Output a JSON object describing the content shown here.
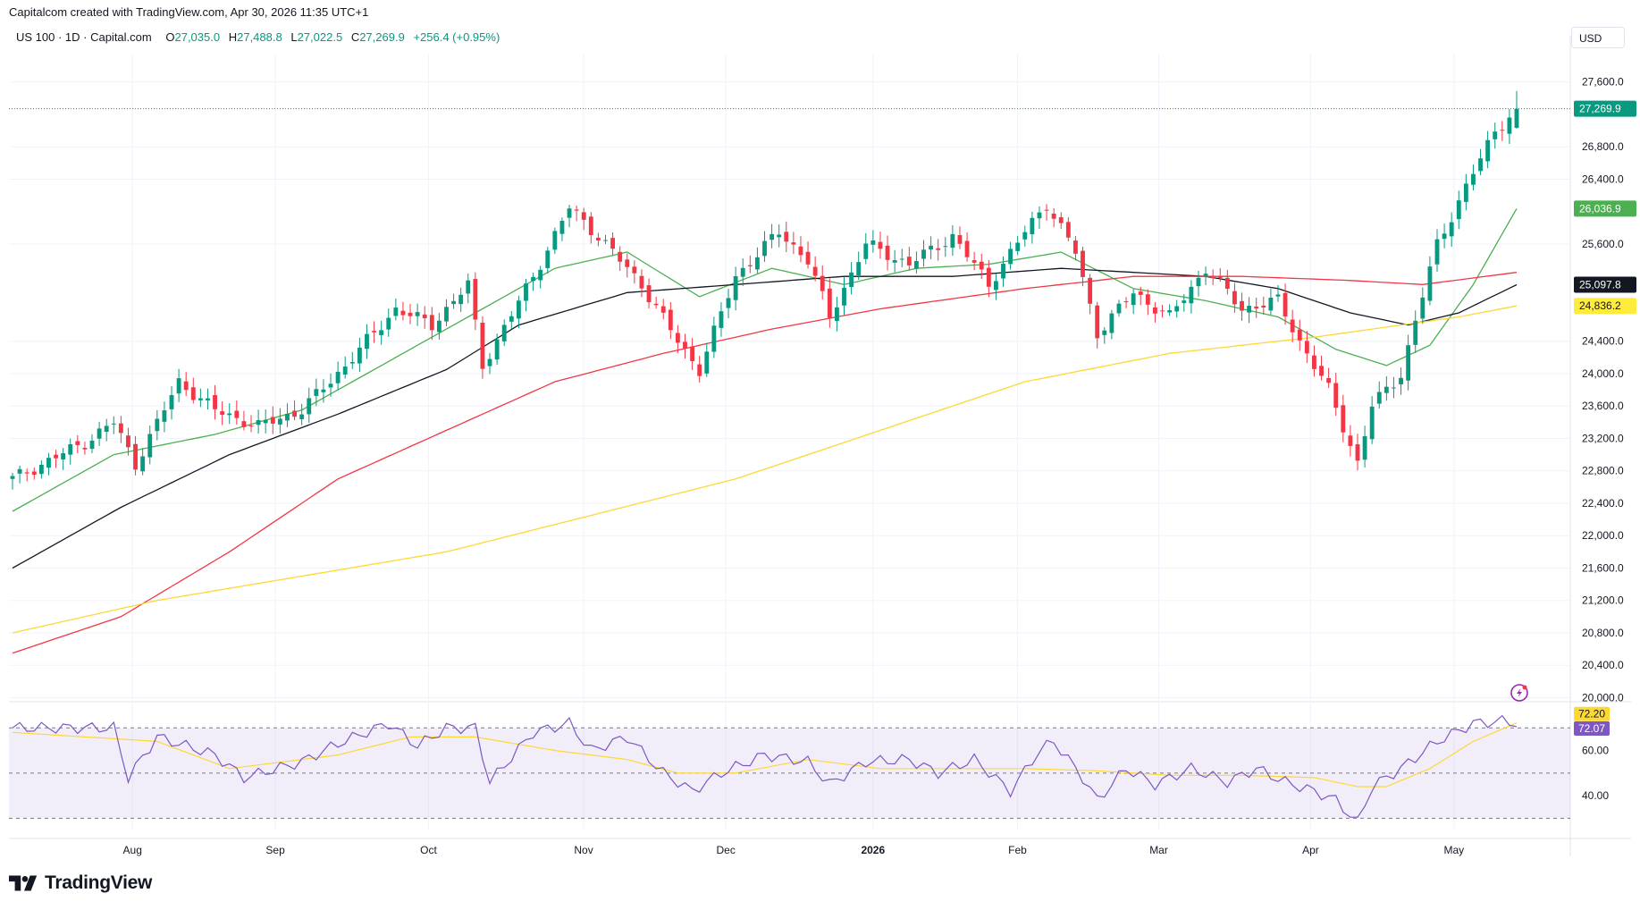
{
  "header": {
    "text": "Capitalcom created with TradingView.com, Apr 30, 2026 11:35 UTC+1"
  },
  "legend": {
    "symbol": "US 100 · 1D · Capital.com",
    "open_label": "O",
    "open": "27,035.0",
    "high_label": "H",
    "high": "27,488.8",
    "low_label": "L",
    "low": "27,022.5",
    "close_label": "C",
    "close": "27,269.9",
    "change": "+256.4 (+0.95%)"
  },
  "currency": "USD",
  "brand": {
    "name": "TradingView",
    "logo_icon": "tradingview-logo-icon"
  },
  "colors": {
    "up": "#089981",
    "down": "#f23645",
    "ma20": "#4caf50",
    "ma50": "#131722",
    "ma100": "#f23645",
    "ma200": "#ffeb3b",
    "rsi": "#7e57c2",
    "rsi_ma": "#fdd835",
    "rsi_band": "#7e57c2"
  },
  "chart_data": [
    {
      "type": "candlestick",
      "title": "US 100 · 1D · Capital.com",
      "x_ticks": [
        "Aug",
        "Sep",
        "Oct",
        "Nov",
        "Dec",
        "2026",
        "Feb",
        "Mar",
        "Apr",
        "May"
      ],
      "y_ticks": [
        "20,000.0",
        "20,400.0",
        "20,800.0",
        "21,200.0",
        "21,600.0",
        "22,000.0",
        "22,400.0",
        "22,800.0",
        "23,200.0",
        "23,600.0",
        "24,000.0",
        "24,400.0",
        "25,600.0",
        "26,400.0",
        "26,800.0",
        "27,600.0"
      ],
      "ylim": [
        19950,
        27950
      ],
      "price_labels": [
        {
          "name": "last-price",
          "text": "27,269.9",
          "value": 27269.9,
          "color": "#089981"
        },
        {
          "name": "ma20",
          "text": "26,036.9",
          "value": 26036.9,
          "color": "#4caf50"
        },
        {
          "name": "ma50",
          "text": "25,097.8",
          "value": 25097.8,
          "color": "#131722"
        },
        {
          "name": "ma200",
          "text": "24,836.2",
          "value": 24836.2,
          "color": "#ffeb3b"
        }
      ],
      "ohlc_anchors": [
        {
          "x": 0,
          "v": 22700
        },
        {
          "x": 10,
          "v": 23150
        },
        {
          "x": 14,
          "v": 23400
        },
        {
          "x": 17,
          "v": 22880
        },
        {
          "x": 23,
          "v": 23900
        },
        {
          "x": 28,
          "v": 23550
        },
        {
          "x": 34,
          "v": 23350
        },
        {
          "x": 40,
          "v": 23550
        },
        {
          "x": 46,
          "v": 24100
        },
        {
          "x": 53,
          "v": 24800
        },
        {
          "x": 58,
          "v": 24600
        },
        {
          "x": 63,
          "v": 25100
        },
        {
          "x": 65,
          "v": 24100
        },
        {
          "x": 72,
          "v": 25200
        },
        {
          "x": 77,
          "v": 26050
        },
        {
          "x": 81,
          "v": 25700
        },
        {
          "x": 87,
          "v": 25100
        },
        {
          "x": 92,
          "v": 24400
        },
        {
          "x": 95,
          "v": 24050
        },
        {
          "x": 100,
          "v": 25200
        },
        {
          "x": 106,
          "v": 25750
        },
        {
          "x": 110,
          "v": 25400
        },
        {
          "x": 113,
          "v": 24700
        },
        {
          "x": 118,
          "v": 25600
        },
        {
          "x": 124,
          "v": 25350
        },
        {
          "x": 130,
          "v": 25700
        },
        {
          "x": 135,
          "v": 25100
        },
        {
          "x": 140,
          "v": 25750
        },
        {
          "x": 143,
          "v": 26100
        },
        {
          "x": 147,
          "v": 25500
        },
        {
          "x": 150,
          "v": 24500
        },
        {
          "x": 155,
          "v": 25000
        },
        {
          "x": 160,
          "v": 24700
        },
        {
          "x": 165,
          "v": 25300
        },
        {
          "x": 170,
          "v": 24800
        },
        {
          "x": 175,
          "v": 24900
        },
        {
          "x": 178,
          "v": 24400
        },
        {
          "x": 182,
          "v": 23800
        },
        {
          "x": 186,
          "v": 22900
        },
        {
          "x": 188,
          "v": 23600
        },
        {
          "x": 192,
          "v": 24000
        },
        {
          "x": 197,
          "v": 25600
        },
        {
          "x": 201,
          "v": 26300
        },
        {
          "x": 205,
          "v": 27000
        },
        {
          "x": 208,
          "v": 27269.9
        }
      ],
      "moving_averages": [
        {
          "name": "MA",
          "color": "#4caf50",
          "points": [
            [
              0,
              22300
            ],
            [
              14,
              23000
            ],
            [
              28,
              23250
            ],
            [
              40,
              23550
            ],
            [
              53,
              24200
            ],
            [
              63,
              24700
            ],
            [
              75,
              25300
            ],
            [
              85,
              25500
            ],
            [
              95,
              24950
            ],
            [
              105,
              25300
            ],
            [
              115,
              25100
            ],
            [
              125,
              25300
            ],
            [
              135,
              25350
            ],
            [
              145,
              25500
            ],
            [
              155,
              25050
            ],
            [
              165,
              24900
            ],
            [
              175,
              24700
            ],
            [
              183,
              24300
            ],
            [
              190,
              24100
            ],
            [
              196,
              24350
            ],
            [
              202,
              25100
            ],
            [
              208,
              26036.9
            ]
          ]
        },
        {
          "name": "MA",
          "color": "#131722",
          "points": [
            [
              0,
              21600
            ],
            [
              15,
              22350
            ],
            [
              30,
              23000
            ],
            [
              45,
              23500
            ],
            [
              60,
              24050
            ],
            [
              70,
              24600
            ],
            [
              85,
              25000
            ],
            [
              100,
              25100
            ],
            [
              115,
              25200
            ],
            [
              130,
              25200
            ],
            [
              145,
              25300
            ],
            [
              155,
              25250
            ],
            [
              165,
              25200
            ],
            [
              175,
              25050
            ],
            [
              185,
              24750
            ],
            [
              193,
              24600
            ],
            [
              200,
              24750
            ],
            [
              208,
              25097.8
            ]
          ]
        },
        {
          "name": "MA",
          "color": "#f23645",
          "points": [
            [
              0,
              20550
            ],
            [
              15,
              21000
            ],
            [
              30,
              21800
            ],
            [
              45,
              22700
            ],
            [
              60,
              23300
            ],
            [
              75,
              23900
            ],
            [
              90,
              24250
            ],
            [
              105,
              24550
            ],
            [
              120,
              24800
            ],
            [
              140,
              25050
            ],
            [
              155,
              25200
            ],
            [
              170,
              25200
            ],
            [
              185,
              25150
            ],
            [
              195,
              25100
            ],
            [
              208,
              25250
            ]
          ]
        },
        {
          "name": "MA",
          "color": "#fdd835",
          "points": [
            [
              0,
              20800
            ],
            [
              20,
              21200
            ],
            [
              40,
              21500
            ],
            [
              60,
              21800
            ],
            [
              80,
              22250
            ],
            [
              100,
              22700
            ],
            [
              120,
              23300
            ],
            [
              140,
              23900
            ],
            [
              160,
              24250
            ],
            [
              180,
              24450
            ],
            [
              200,
              24700
            ],
            [
              208,
              24836.2
            ]
          ]
        }
      ]
    },
    {
      "type": "line",
      "title": "RSI",
      "y_ticks": [
        "40.00",
        "60.00"
      ],
      "ylim": [
        25,
        80
      ],
      "overbought": 70,
      "oversold": 30,
      "mid": 50,
      "labels": [
        {
          "name": "rsi-ma",
          "text": "72.20",
          "value": 72.2,
          "color": "#fdd835"
        },
        {
          "name": "rsi",
          "text": "72.07",
          "value": 72.07,
          "color": "#7e57c2"
        }
      ],
      "rsi_anchors": [
        [
          0,
          70
        ],
        [
          14,
          70
        ],
        [
          16,
          48
        ],
        [
          20,
          66
        ],
        [
          28,
          58
        ],
        [
          32,
          48
        ],
        [
          40,
          55
        ],
        [
          45,
          63
        ],
        [
          52,
          72
        ],
        [
          56,
          62
        ],
        [
          60,
          70
        ],
        [
          64,
          70
        ],
        [
          66,
          46
        ],
        [
          72,
          68
        ],
        [
          77,
          72
        ],
        [
          80,
          60
        ],
        [
          85,
          66
        ],
        [
          90,
          50
        ],
        [
          94,
          42
        ],
        [
          98,
          50
        ],
        [
          104,
          58
        ],
        [
          110,
          55
        ],
        [
          113,
          45
        ],
        [
          118,
          55
        ],
        [
          124,
          56
        ],
        [
          128,
          50
        ],
        [
          133,
          56
        ],
        [
          138,
          42
        ],
        [
          142,
          60
        ],
        [
          144,
          64
        ],
        [
          148,
          48
        ],
        [
          150,
          38
        ],
        [
          154,
          52
        ],
        [
          158,
          45
        ],
        [
          163,
          52
        ],
        [
          168,
          46
        ],
        [
          172,
          52
        ],
        [
          176,
          46
        ],
        [
          180,
          42
        ],
        [
          183,
          38
        ],
        [
          186,
          28
        ],
        [
          188,
          44
        ],
        [
          192,
          52
        ],
        [
          197,
          64
        ],
        [
          202,
          72
        ],
        [
          206,
          73
        ],
        [
          208,
          72.07
        ]
      ],
      "rsi_ma_anchors": [
        [
          0,
          68
        ],
        [
          20,
          64
        ],
        [
          30,
          52
        ],
        [
          45,
          58
        ],
        [
          55,
          66
        ],
        [
          64,
          66
        ],
        [
          75,
          60
        ],
        [
          85,
          56
        ],
        [
          92,
          50
        ],
        [
          100,
          50
        ],
        [
          110,
          56
        ],
        [
          120,
          52
        ],
        [
          130,
          52
        ],
        [
          140,
          52
        ],
        [
          150,
          51
        ],
        [
          160,
          49
        ],
        [
          170,
          49
        ],
        [
          180,
          48
        ],
        [
          186,
          44
        ],
        [
          190,
          44
        ],
        [
          196,
          52
        ],
        [
          202,
          64
        ],
        [
          208,
          72.2
        ]
      ]
    }
  ]
}
